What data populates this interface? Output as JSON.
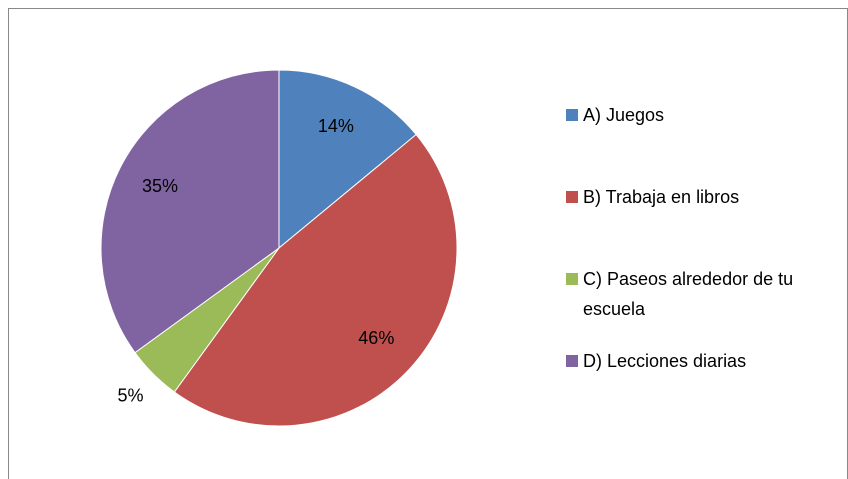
{
  "chart_data": {
    "type": "pie",
    "categories": [
      "A) Juegos",
      "B) Trabaja en libros",
      "C) Paseos alrededor de tu escuela",
      "D) Lecciones diarias"
    ],
    "values": [
      14,
      46,
      5,
      35
    ],
    "value_labels": [
      "14%",
      "46%",
      "5%",
      "35%"
    ],
    "colors": [
      "#4f81bd",
      "#c0504d",
      "#9bbb59",
      "#8064a2"
    ],
    "legend": "right"
  }
}
